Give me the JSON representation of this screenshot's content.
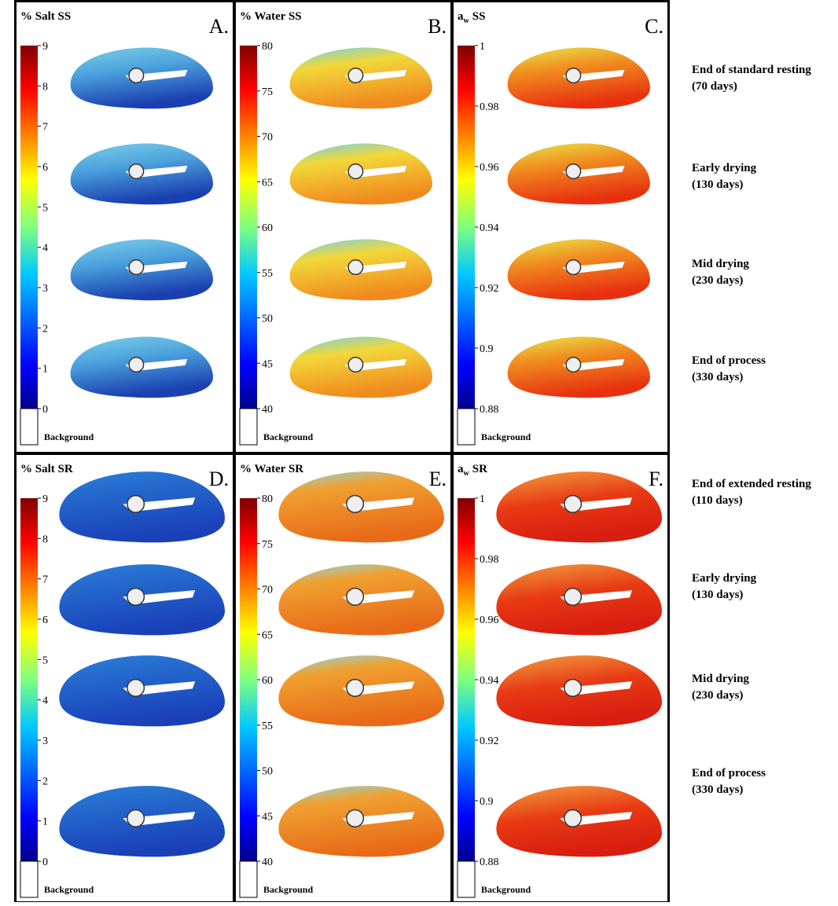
{
  "panels": [
    {
      "title": "% Salt SS",
      "letter": "A.",
      "ticks": [
        0,
        1,
        2,
        3,
        4,
        5,
        6,
        7,
        8,
        9
      ],
      "background_label": "Background"
    },
    {
      "title": "% Water SS",
      "letter": "B.",
      "ticks": [
        40,
        45,
        50,
        55,
        60,
        65,
        70,
        75,
        80
      ],
      "background_label": "Background"
    },
    {
      "title": "a",
      "title_sub": "w",
      "title_rest": "SS",
      "letter": "C.",
      "ticks": [
        0.88,
        0.9,
        0.92,
        0.94,
        0.96,
        0.98,
        1
      ],
      "background_label": "Background"
    },
    {
      "title": "% Salt SR",
      "letter": "D.",
      "ticks": [
        0,
        1,
        2,
        3,
        4,
        5,
        6,
        7,
        8,
        9
      ],
      "background_label": "Background"
    },
    {
      "title": "% Water SR",
      "letter": "E.",
      "ticks": [
        40,
        45,
        50,
        55,
        60,
        65,
        70,
        75,
        80
      ],
      "background_label": "Background"
    },
    {
      "title": "a",
      "title_sub": "w",
      "title_rest": "SR",
      "letter": "F.",
      "ticks": [
        0.88,
        0.9,
        0.92,
        0.94,
        0.96,
        0.98,
        1
      ],
      "background_label": "Background"
    }
  ],
  "row_labels": [
    {
      "line1": "End of standard resting",
      "line2": "(70 days)"
    },
    {
      "line1": "Early drying",
      "line2": "(130 days)"
    },
    {
      "line1": "Mid drying",
      "line2": "(230 days)"
    },
    {
      "line1": "End of process",
      "line2": "(330 days)"
    },
    {
      "line1": "End of extended resting",
      "line2": "(110 days)"
    },
    {
      "line1": "Early drying",
      "line2": "(130 days)"
    },
    {
      "line1": "Mid drying",
      "line2": "(230 days)"
    },
    {
      "line1": "End of process",
      "line2": "(330 days)"
    }
  ]
}
